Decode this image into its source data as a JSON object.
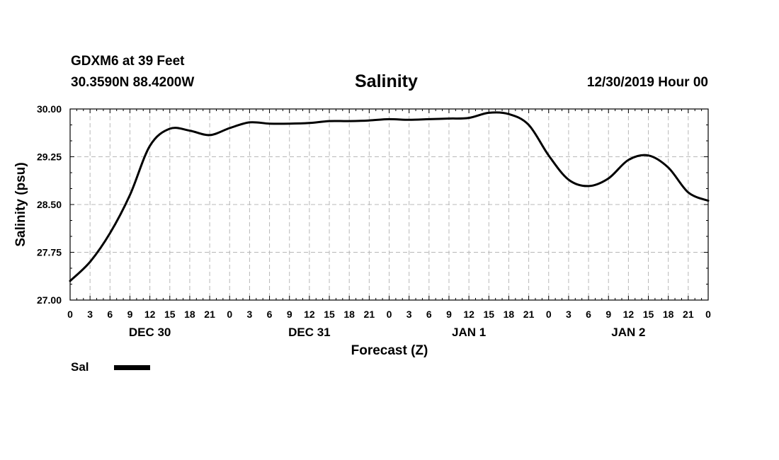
{
  "header": {
    "station": "GDXM6 at 39 Feet",
    "coords": "30.3590N 88.4200W",
    "title": "Salinity",
    "datetime": "12/30/2019 Hour 00"
  },
  "legend": {
    "label": "Sal",
    "color": "#000000"
  },
  "chart_data": {
    "type": "line",
    "title": "Salinity",
    "xlabel": "Forecast (Z)",
    "ylabel": "Salinity (psu)",
    "ylim": [
      27.0,
      30.0
    ],
    "yticks": [
      "27.00",
      "27.75",
      "28.50",
      "29.25",
      "30.00"
    ],
    "x_hours_range": [
      0,
      96
    ],
    "x_tick_labels": [
      "0",
      "3",
      "6",
      "9",
      "12",
      "15",
      "18",
      "21",
      "0",
      "3",
      "6",
      "9",
      "12",
      "15",
      "18",
      "21",
      "0",
      "3",
      "6",
      "9",
      "12",
      "15",
      "18",
      "21",
      "0",
      "3",
      "6",
      "9",
      "12",
      "15",
      "18",
      "21",
      "0"
    ],
    "day_labels": [
      {
        "label": "DEC 30",
        "hour": 12
      },
      {
        "label": "DEC 31",
        "hour": 36
      },
      {
        "label": "JAN 1",
        "hour": 60
      },
      {
        "label": "JAN 2",
        "hour": 84
      }
    ],
    "grid": true,
    "series": [
      {
        "name": "Sal",
        "color": "#000000",
        "x": [
          0,
          3,
          6,
          9,
          12,
          15,
          18,
          21,
          24,
          27,
          30,
          33,
          36,
          39,
          42,
          45,
          48,
          51,
          54,
          57,
          60,
          63,
          66,
          69,
          72,
          75,
          78,
          81,
          84,
          87,
          90,
          93,
          96
        ],
        "y": [
          27.3,
          27.6,
          28.05,
          28.65,
          29.42,
          29.69,
          29.66,
          29.59,
          29.7,
          29.79,
          29.77,
          29.77,
          29.78,
          29.81,
          29.81,
          29.82,
          29.84,
          29.83,
          29.84,
          29.85,
          29.86,
          29.94,
          29.92,
          29.75,
          29.27,
          28.89,
          28.79,
          28.91,
          29.2,
          29.27,
          29.08,
          28.69,
          28.56
        ]
      }
    ]
  }
}
